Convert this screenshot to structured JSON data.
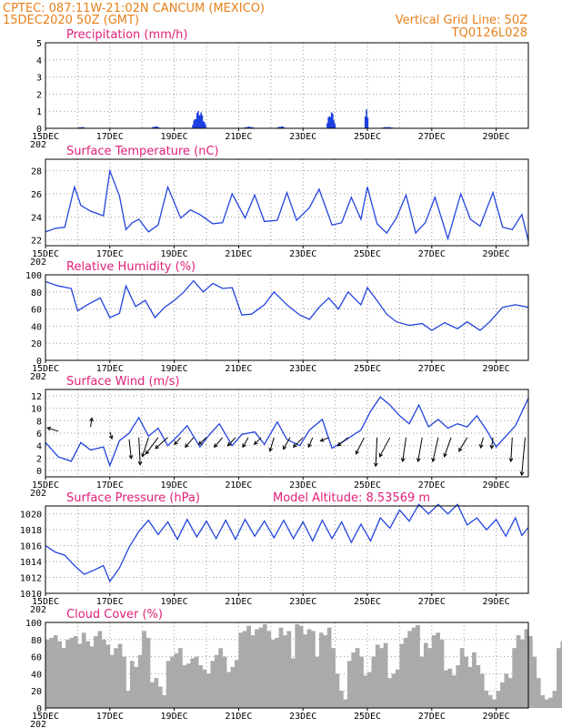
{
  "header": {
    "line1_left": "CPTEC:   087:11W-21:02N   CANCUM (MEXICO)",
    "line2_left": "15DEC2020 50Z (GMT)",
    "line1_right": "Vertical Grid Line: 50Z",
    "line2_right": "TQ0126L028"
  },
  "x_tick_labels": [
    "15DEC",
    "17DEC",
    "19DEC",
    "21DEC",
    "23DEC",
    "25DEC",
    "27DEC",
    "29DEC"
  ],
  "x_tick_sub": "202",
  "colors": {
    "line": "#2244dd",
    "bar": "#1a3fe0",
    "cloud": "#aaaaaa",
    "title": "#e0207a",
    "header": "#e8801a",
    "grid": "#999999"
  },
  "chart_data": [
    {
      "type": "bar",
      "title": "Precipitation (mm/h)",
      "ylim": [
        0,
        5
      ],
      "yticks": [
        0,
        1,
        2,
        3,
        4,
        5
      ],
      "x_range_days": [
        15,
        30
      ],
      "events": [
        {
          "center": 19.75,
          "width": 0.45,
          "peak": 1.05
        },
        {
          "center": 23.85,
          "width": 0.3,
          "peak": 1.0
        },
        {
          "center": 24.95,
          "width": 0.15,
          "peak": 1.1
        },
        {
          "center": 16.1,
          "width": 0.3,
          "peak": 0.08
        },
        {
          "center": 18.4,
          "width": 0.3,
          "peak": 0.12
        },
        {
          "center": 21.3,
          "width": 0.4,
          "peak": 0.1
        },
        {
          "center": 22.3,
          "width": 0.3,
          "peak": 0.12
        },
        {
          "center": 25.6,
          "width": 0.5,
          "peak": 0.08
        }
      ]
    },
    {
      "type": "line",
      "title": "Surface Temperature (nC)",
      "ylim": [
        21.5,
        29
      ],
      "yticks": [
        22,
        24,
        26,
        28
      ],
      "x": [
        15,
        15.3,
        15.6,
        15.9,
        16.1,
        16.4,
        16.8,
        17,
        17.3,
        17.5,
        17.7,
        17.9,
        18.2,
        18.5,
        18.8,
        19.2,
        19.5,
        19.8,
        20.2,
        20.5,
        20.8,
        21.2,
        21.5,
        21.8,
        22.2,
        22.5,
        22.8,
        23.2,
        23.5,
        23.9,
        24.2,
        24.5,
        24.8,
        25,
        25.3,
        25.6,
        25.9,
        26.2,
        26.5,
        26.8,
        27.1,
        27.5,
        27.9,
        28.2,
        28.5,
        28.9,
        29.2,
        29.5,
        29.8,
        30
      ],
      "y": [
        22.7,
        23,
        23.1,
        26.6,
        25,
        24.5,
        24.1,
        28,
        25.8,
        22.9,
        23.5,
        23.8,
        22.7,
        23.3,
        26.6,
        23.9,
        24.6,
        24.2,
        23.4,
        23.5,
        26,
        23.9,
        25.9,
        23.6,
        23.7,
        26.1,
        23.7,
        24.8,
        26.4,
        23.3,
        23.5,
        25.7,
        23.8,
        26.6,
        23.4,
        22.6,
        23.9,
        25.9,
        22.6,
        23.5,
        25.7,
        22.1,
        26,
        23.8,
        23.2,
        26.1,
        23.1,
        22.9,
        24.2,
        21.9
      ]
    },
    {
      "type": "line",
      "title": "Relative Humidity (%)",
      "ylim": [
        0,
        100
      ],
      "yticks": [
        0,
        20,
        40,
        60,
        80,
        100
      ],
      "x": [
        15,
        15.4,
        15.8,
        16,
        16.3,
        16.7,
        17,
        17.3,
        17.5,
        17.8,
        18.1,
        18.4,
        18.7,
        19,
        19.3,
        19.6,
        19.9,
        20.2,
        20.5,
        20.8,
        21.1,
        21.4,
        21.8,
        22.1,
        22.5,
        22.9,
        23.2,
        23.5,
        23.8,
        24.1,
        24.4,
        24.8,
        25,
        25.3,
        25.6,
        25.9,
        26.3,
        26.7,
        27,
        27.4,
        27.8,
        28.1,
        28.5,
        28.8,
        29.2,
        29.6,
        30
      ],
      "y": [
        92,
        87,
        84,
        58,
        65,
        73,
        50,
        55,
        87,
        63,
        70,
        50,
        62,
        70,
        80,
        93,
        80,
        90,
        84,
        85,
        53,
        54,
        65,
        80,
        65,
        53,
        48,
        62,
        73,
        60,
        80,
        65,
        85,
        70,
        54,
        45,
        41,
        43,
        35,
        44,
        37,
        45,
        35,
        45,
        62,
        65,
        62
      ]
    },
    {
      "type": "line",
      "title": "Surface Wind (m/s)",
      "ylim": [
        -1,
        13
      ],
      "yticks": [
        0,
        2,
        4,
        6,
        8,
        10,
        12
      ],
      "x": [
        15,
        15.4,
        15.8,
        16.1,
        16.4,
        16.8,
        17,
        17.3,
        17.6,
        17.9,
        18.2,
        18.5,
        18.8,
        19.1,
        19.4,
        19.8,
        20.1,
        20.4,
        20.8,
        21.1,
        21.5,
        21.8,
        22.2,
        22.5,
        22.9,
        23.2,
        23.6,
        23.9,
        24.2,
        24.5,
        24.8,
        25.1,
        25.4,
        25.7,
        26,
        26.3,
        26.6,
        26.9,
        27.2,
        27.5,
        27.8,
        28.1,
        28.4,
        28.7,
        29,
        29.3,
        29.6,
        30
      ],
      "y": [
        4.5,
        2.2,
        1.5,
        4.5,
        3.3,
        3.8,
        0.8,
        4.8,
        6,
        8.5,
        5.5,
        6.8,
        4,
        5.5,
        7.2,
        3.8,
        5.8,
        7.5,
        4,
        5.8,
        6.2,
        4.2,
        7.8,
        5,
        4,
        6.5,
        8.2,
        3.6,
        4.5,
        5.5,
        6.5,
        9.5,
        11.8,
        10.5,
        8.8,
        7.5,
        10.5,
        7,
        8.2,
        6.8,
        7.5,
        7,
        8.8,
        6.5,
        3.8,
        5.5,
        7.2,
        11.6
      ],
      "arrows": [
        {
          "x": 15.4,
          "y": 6.3,
          "u": -1.6,
          "v": 0.5
        },
        {
          "x": 16.4,
          "y": 7,
          "u": 0.2,
          "v": 1.3
        },
        {
          "x": 17.0,
          "y": 6.2,
          "u": 0.3,
          "v": -1
        },
        {
          "x": 17.6,
          "y": 5,
          "u": 0.3,
          "v": -2.8
        },
        {
          "x": 17.9,
          "y": 5.3,
          "u": 0.2,
          "v": -4
        },
        {
          "x": 18.2,
          "y": 5.3,
          "u": -0.9,
          "v": -2.8
        },
        {
          "x": 18.5,
          "y": 5.3,
          "u": -1.8,
          "v": -2.4
        },
        {
          "x": 18.8,
          "y": 5.3,
          "u": -1.8,
          "v": -1.6
        },
        {
          "x": 19.2,
          "y": 5.3,
          "u": -0.9,
          "v": -1
        },
        {
          "x": 19.6,
          "y": 5.3,
          "u": -1.2,
          "v": -1.4
        },
        {
          "x": 20.0,
          "y": 5.3,
          "u": -1.1,
          "v": -1
        },
        {
          "x": 20.5,
          "y": 5.3,
          "u": -1.2,
          "v": -1.4
        },
        {
          "x": 20.9,
          "y": 5.3,
          "u": -1.1,
          "v": -1.2
        },
        {
          "x": 21.3,
          "y": 5.3,
          "u": -0.8,
          "v": -1.4
        },
        {
          "x": 21.7,
          "y": 5.3,
          "u": -1,
          "v": -1
        },
        {
          "x": 22.1,
          "y": 5.3,
          "u": -0.6,
          "v": -2
        },
        {
          "x": 22.6,
          "y": 5.3,
          "u": -1,
          "v": -1.7
        },
        {
          "x": 23.0,
          "y": 5.3,
          "u": -1.4,
          "v": -1.4
        },
        {
          "x": 23.3,
          "y": 5.3,
          "u": -0.6,
          "v": -1.4
        },
        {
          "x": 23.8,
          "y": 5.3,
          "u": -1.2,
          "v": -0.5
        },
        {
          "x": 24.4,
          "y": 5.3,
          "u": -1.5,
          "v": -1.2
        },
        {
          "x": 24.9,
          "y": 5.3,
          "u": -1.2,
          "v": -2.4
        },
        {
          "x": 25.3,
          "y": 5.3,
          "u": -0.2,
          "v": -4.2
        },
        {
          "x": 25.7,
          "y": 5.3,
          "u": -1.5,
          "v": -2.8
        },
        {
          "x": 26.2,
          "y": 5.3,
          "u": -0.5,
          "v": -3.5
        },
        {
          "x": 26.7,
          "y": 5.3,
          "u": -0.6,
          "v": -3.5
        },
        {
          "x": 27.2,
          "y": 5.3,
          "u": -0.8,
          "v": -3.5
        },
        {
          "x": 27.6,
          "y": 5.3,
          "u": -1,
          "v": -2.8
        },
        {
          "x": 28.1,
          "y": 5.3,
          "u": -1.2,
          "v": -2
        },
        {
          "x": 28.6,
          "y": 5.3,
          "u": -0.4,
          "v": -1.5
        },
        {
          "x": 28.9,
          "y": 5.3,
          "u": -0.2,
          "v": -1.6
        },
        {
          "x": 29.5,
          "y": 5.3,
          "u": -0.2,
          "v": -3.5
        },
        {
          "x": 29.9,
          "y": 5.3,
          "u": -0.5,
          "v": -5.5
        }
      ]
    },
    {
      "type": "line",
      "title": "Surface Pressure (hPa)",
      "annotation": "Model Altitude: 8.53569  m",
      "ylim": [
        1010,
        1021
      ],
      "yticks": [
        1010,
        1012,
        1014,
        1016,
        1018,
        1020
      ],
      "x": [
        15,
        15.3,
        15.6,
        15.9,
        16.2,
        16.5,
        16.8,
        17,
        17.3,
        17.6,
        17.9,
        18.2,
        18.5,
        18.8,
        19.1,
        19.4,
        19.7,
        20,
        20.3,
        20.6,
        20.9,
        21.2,
        21.5,
        21.8,
        22.1,
        22.4,
        22.7,
        23,
        23.3,
        23.6,
        23.9,
        24.2,
        24.5,
        24.8,
        25.1,
        25.4,
        25.7,
        26,
        26.3,
        26.6,
        26.9,
        27.2,
        27.5,
        27.8,
        28.1,
        28.4,
        28.7,
        29,
        29.3,
        29.6,
        29.8,
        30
      ],
      "y": [
        1016,
        1015.2,
        1014.8,
        1013.5,
        1012.4,
        1012.9,
        1013.5,
        1011.5,
        1013.2,
        1015.8,
        1017.8,
        1019.2,
        1017.4,
        1019,
        1016.8,
        1019.3,
        1017.1,
        1019.1,
        1016.9,
        1019.2,
        1016.8,
        1019.3,
        1017.2,
        1019.1,
        1017,
        1019.2,
        1016.9,
        1019,
        1016.6,
        1019.2,
        1016.9,
        1019,
        1016.4,
        1018.7,
        1016.6,
        1019.5,
        1018.2,
        1020.5,
        1019.1,
        1021.2,
        1020,
        1021.2,
        1020,
        1021.2,
        1018.6,
        1019.5,
        1018,
        1019.3,
        1017.2,
        1019.5,
        1017.3,
        1018.3
      ]
    },
    {
      "type": "bar",
      "title": "Cloud Cover (%)",
      "ylim": [
        0,
        100
      ],
      "yticks": [
        0,
        20,
        40,
        60,
        80,
        100
      ],
      "x_start": 15,
      "step": 0.125,
      "values": [
        80,
        82,
        85,
        78,
        70,
        80,
        82,
        84,
        75,
        88,
        78,
        72,
        84,
        90,
        80,
        74,
        62,
        70,
        75,
        60,
        20,
        55,
        48,
        62,
        90,
        82,
        30,
        35,
        25,
        15,
        55,
        60,
        64,
        70,
        50,
        52,
        58,
        60,
        50,
        45,
        40,
        55,
        62,
        70,
        60,
        42,
        48,
        56,
        88,
        90,
        96,
        85,
        92,
        94,
        98,
        90,
        80,
        82,
        94,
        85,
        90,
        58,
        98,
        96,
        86,
        92,
        90,
        60,
        88,
        85,
        94,
        70,
        40,
        20,
        10,
        55,
        65,
        70,
        60,
        38,
        42,
        60,
        74,
        70,
        76,
        35,
        40,
        45,
        75,
        82,
        90,
        94,
        97,
        60,
        76,
        70,
        85,
        88,
        80,
        44,
        46,
        38,
        50,
        70,
        60,
        48,
        65,
        50,
        40,
        20,
        15,
        10,
        20,
        30,
        40,
        35,
        70,
        85,
        80,
        92,
        84,
        60,
        35,
        15,
        10,
        12,
        20,
        70,
        78,
        66,
        50,
        30,
        10,
        20,
        60,
        45,
        30,
        15,
        8,
        30,
        35,
        20,
        15,
        30,
        15,
        70,
        80,
        88,
        84,
        90,
        78,
        30,
        20,
        10,
        15,
        38,
        60,
        40,
        55,
        25,
        86,
        85,
        92,
        84,
        60,
        40,
        30,
        92,
        90,
        85,
        70,
        55,
        40,
        20,
        90,
        85,
        94,
        88,
        92,
        88,
        95,
        86,
        60,
        42,
        55,
        95,
        94,
        88,
        95,
        96,
        90,
        80,
        70,
        55
      ]
    }
  ]
}
